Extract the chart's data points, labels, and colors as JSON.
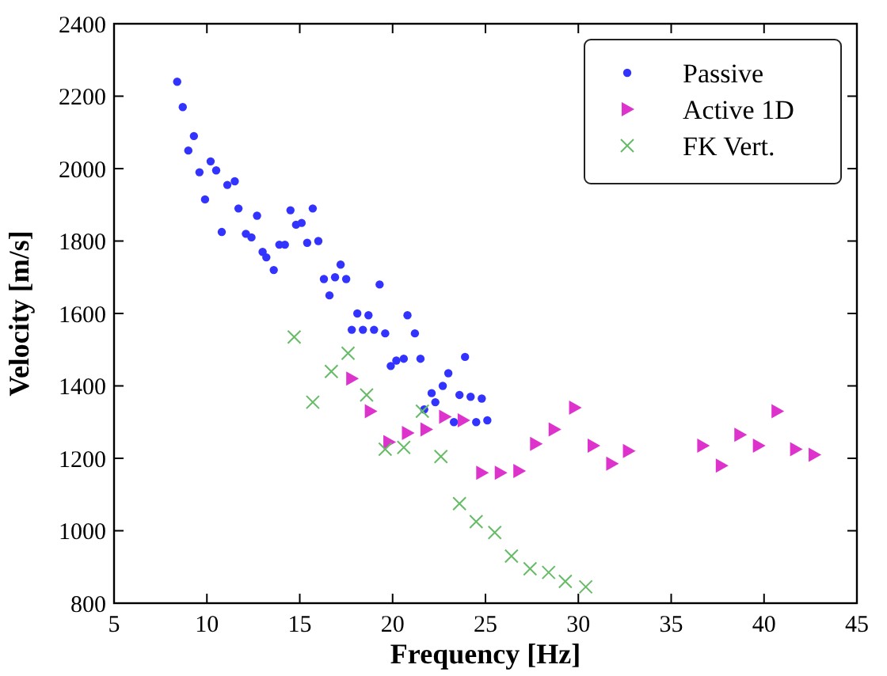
{
  "chart_data": {
    "type": "scatter",
    "xlabel": "Frequency [Hz]",
    "ylabel": "Velocity [m/s]",
    "xlim": [
      5,
      45
    ],
    "xticks": [
      5,
      10,
      15,
      20,
      25,
      30,
      35,
      40,
      45
    ],
    "ylim": [
      800,
      2400
    ],
    "yticks": [
      800,
      1000,
      1200,
      1400,
      1600,
      1800,
      2000,
      2200,
      2400
    ],
    "grid": false,
    "legend": "top right",
    "series": [
      {
        "name": "Passive",
        "color": "#3333ff",
        "marker": "circle",
        "x": [
          8.4,
          8.7,
          9.3,
          9.0,
          10.2,
          9.6,
          10.5,
          11.1,
          11.5,
          9.9,
          11.7,
          12.7,
          10.8,
          12.1,
          12.4,
          14.5,
          14.8,
          15.1,
          15.7,
          13.9,
          14.2,
          15.4,
          16.0,
          13.0,
          13.2,
          13.6,
          17.2,
          16.3,
          16.9,
          17.5,
          16.6,
          18.1,
          18.7,
          17.8,
          18.4,
          19.0,
          19.3,
          20.8,
          19.6,
          21.2,
          19.9,
          20.2,
          20.6,
          21.5,
          23.9,
          23.0,
          22.7,
          22.1,
          23.6,
          24.2,
          24.8,
          22.3,
          21.7,
          23.3,
          24.5,
          25.1
        ],
        "values": [
          2240,
          2170,
          2090,
          2050,
          2020,
          1990,
          1995,
          1955,
          1965,
          1915,
          1890,
          1870,
          1825,
          1820,
          1810,
          1885,
          1845,
          1850,
          1890,
          1790,
          1790,
          1795,
          1800,
          1770,
          1755,
          1720,
          1735,
          1695,
          1700,
          1695,
          1650,
          1600,
          1595,
          1555,
          1555,
          1555,
          1680,
          1595,
          1545,
          1545,
          1455,
          1470,
          1475,
          1475,
          1480,
          1435,
          1400,
          1380,
          1375,
          1370,
          1365,
          1355,
          1335,
          1300,
          1300,
          1305
        ]
      },
      {
        "name": "Active 1D",
        "color": "#dd33cc",
        "marker": "triangle",
        "x": [
          17.8,
          18.8,
          19.8,
          20.8,
          21.8,
          22.8,
          23.8,
          24.8,
          25.8,
          26.8,
          27.7,
          28.7,
          29.8,
          30.8,
          31.8,
          32.7,
          36.7,
          37.7,
          38.7,
          39.7,
          40.7,
          41.7,
          42.7
        ],
        "values": [
          1420,
          1330,
          1245,
          1270,
          1280,
          1315,
          1305,
          1160,
          1160,
          1165,
          1240,
          1280,
          1340,
          1235,
          1185,
          1220,
          1235,
          1180,
          1265,
          1235,
          1330,
          1225,
          1210
        ]
      },
      {
        "name": "FK Vert.",
        "color": "#66bb66",
        "marker": "cross",
        "x": [
          14.7,
          17.6,
          16.7,
          15.7,
          18.6,
          21.6,
          19.6,
          20.6,
          22.6,
          23.6,
          24.5,
          25.5,
          26.4,
          27.4,
          28.4,
          29.3,
          30.4
        ],
        "values": [
          1535,
          1490,
          1440,
          1355,
          1375,
          1330,
          1225,
          1230,
          1205,
          1075,
          1025,
          995,
          930,
          895,
          885,
          860,
          845
        ]
      }
    ]
  }
}
